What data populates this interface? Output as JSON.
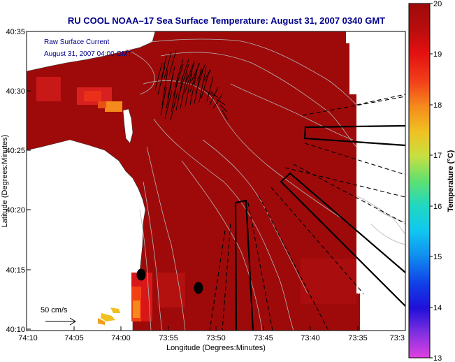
{
  "title": "RU COOL  NOAA–17  Sea Surface Temperature:  August 31, 2007 0340 GMT",
  "annotation": {
    "line1": "Raw Surface Current",
    "line2": "August 31, 2007 04:00 GMT"
  },
  "scale": {
    "label": "50 cm/s"
  },
  "axes": {
    "xlabel": "Longitude (Degrees:Minutes)",
    "ylabel": "Latitude (Degrees:Minutes)",
    "x_ticks": [
      "74:10",
      "74:05",
      "74:00",
      "73:55",
      "73:50",
      "73:45",
      "73:40",
      "73:35",
      "73:3"
    ],
    "y_ticks": [
      "40:35",
      "40:30",
      "40:25",
      "40:20",
      "40:15",
      "40:10"
    ]
  },
  "colorbar": {
    "label": "Temperature (°C)",
    "min": 13,
    "max": 20,
    "ticks": [
      "20",
      "19",
      "18",
      "17",
      "16",
      "15",
      "14",
      "13"
    ]
  },
  "colors": {
    "sst_dominant": "#9e0a0a",
    "sst_patch_warm": "#d92020",
    "sst_patch_hot": "#f23015",
    "sst_patch_orange": "#f58a1c",
    "sst_yellow": "#f0c020",
    "land": "#ffffff",
    "contour": "#b4b4b4",
    "title_text": "#00008b"
  }
}
